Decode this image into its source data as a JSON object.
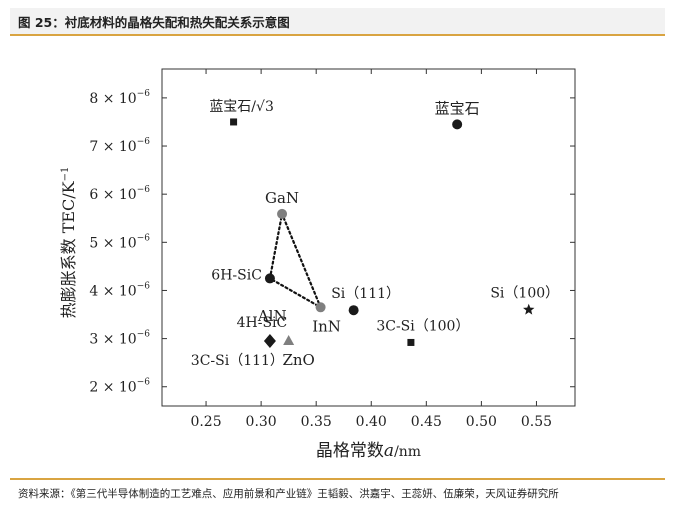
{
  "header": {
    "title": "图 25：衬底材料的晶格失配和热失配关系示意图"
  },
  "footer": {
    "source": "资料来源：《第三代半导体制造的工艺难点、应用前景和产业链》王韬毅、洪嘉宇、王蕊妍、伍廉荣，天风证券研究所"
  },
  "theme": {
    "accent": "#d9a441",
    "header_bg": "#f2f2f2",
    "marker_dark": "#1a1a1a",
    "marker_gray": "#7f7f7f"
  },
  "chart_data": {
    "type": "scatter",
    "xlabel": {
      "prefix": "晶格常数",
      "italic": "a",
      "suffix": "/nm"
    },
    "ylabel": "热膨胀系数 TEC/K",
    "ylabel_sup": "−1",
    "xlim": [
      0.21,
      0.585
    ],
    "ylim": [
      1.6,
      8.6
    ],
    "y_exponent": "−6",
    "x_ticks": [
      0.25,
      0.3,
      0.35,
      0.4,
      0.45,
      0.5,
      0.55
    ],
    "x_tick_labels": [
      "0.25",
      "0.30",
      "0.35",
      "0.40",
      "0.45",
      "0.50",
      "0.55"
    ],
    "y_ticks": [
      2,
      3,
      4,
      5,
      6,
      7,
      8
    ],
    "y_tick_labels": [
      "2 × 10",
      "3 × 10",
      "4 × 10",
      "5 × 10",
      "6 × 10",
      "7 × 10",
      "8 × 10"
    ],
    "grid": false,
    "points": [
      {
        "label": "蓝宝石/√3",
        "x": 0.275,
        "y": 7.5,
        "marker": "square",
        "color": "#1a1a1a",
        "label_pos": "above"
      },
      {
        "label": "蓝宝石",
        "x": 0.478,
        "y": 7.45,
        "marker": "circle",
        "color": "#1a1a1a",
        "label_pos": "above"
      },
      {
        "label": "GaN",
        "x": 0.319,
        "y": 5.59,
        "marker": "circle",
        "color": "#7f7f7f",
        "label_pos": "above"
      },
      {
        "label": "6H-SiC",
        "x": 0.308,
        "y": 4.25,
        "marker": "circle",
        "color": "#1a1a1a",
        "label_pos": "left"
      },
      {
        "label": "AlN",
        "x": 0.311,
        "y": 4.2,
        "marker": "none",
        "color": "#1a1a1a",
        "label_pos": "below"
      },
      {
        "label": "InN",
        "x": 0.354,
        "y": 3.65,
        "marker": "circle",
        "color": "#7f7f7f",
        "label_pos": "below"
      },
      {
        "label": "Si（111）",
        "x": 0.384,
        "y": 3.59,
        "marker": "circle",
        "color": "#1a1a1a",
        "label_pos": "above"
      },
      {
        "label": "4H-SiC",
        "x": 0.308,
        "y": 2.95,
        "marker": "diamond",
        "color": "#1a1a1a",
        "label_pos": "above"
      },
      {
        "label": "3C-Si（111）",
        "x": 0.308,
        "y": 2.95,
        "marker": "none",
        "color": "#1a1a1a",
        "label_pos": "below-left"
      },
      {
        "label": "ZnO",
        "x": 0.325,
        "y": 2.95,
        "marker": "triangle",
        "color": "#7f7f7f",
        "label_pos": "below"
      },
      {
        "label": "3C-Si（100）",
        "x": 0.436,
        "y": 2.92,
        "marker": "square",
        "color": "#1a1a1a",
        "label_pos": "above"
      },
      {
        "label": "Si（100）",
        "x": 0.543,
        "y": 3.6,
        "marker": "star",
        "color": "#1a1a1a",
        "label_pos": "above"
      }
    ],
    "dotted_triangle": [
      {
        "x": 0.308,
        "y": 4.25
      },
      {
        "x": 0.319,
        "y": 5.59
      },
      {
        "x": 0.354,
        "y": 3.65
      }
    ]
  }
}
